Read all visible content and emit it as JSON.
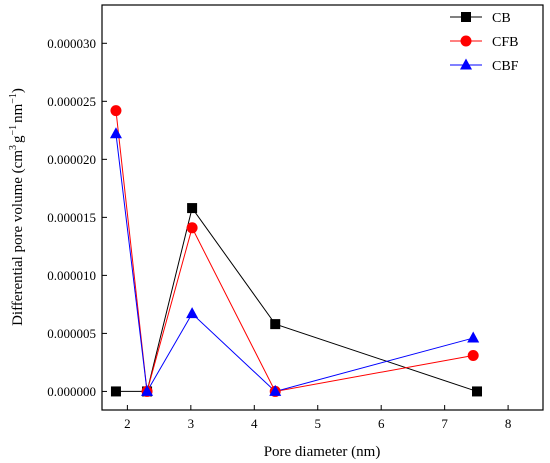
{
  "chart_data": {
    "type": "line",
    "xlabel": "Pore diameter (nm)",
    "ylabel": {
      "prefix": "Differential pore volume (cm",
      "sup1": "3",
      "mid": "g",
      "sup2": "−1",
      "mid2": "nm",
      "sup3": "−1",
      "suffix": ")"
    },
    "xlim": [
      1.6,
      8.55
    ],
    "ylim": [
      -1.6e-06,
      3.33e-05
    ],
    "xticks": [
      2,
      3,
      4,
      5,
      6,
      7,
      8
    ],
    "yticks": [
      0.0,
      5e-06,
      1e-05,
      1.5e-05,
      2e-05,
      2.5e-05,
      3e-05
    ],
    "ytick_labels": [
      "0.000000",
      "0.000005",
      "0.000010",
      "0.000015",
      "0.000020",
      "0.000025",
      "0.000030"
    ],
    "legend_position": "top-right",
    "grid": false,
    "series": [
      {
        "name": "CB",
        "color": "#000000",
        "marker": "square",
        "x": [
          1.82,
          2.31,
          3.02,
          4.33,
          7.51
        ],
        "y": [
          0.0,
          0.0,
          1.58e-05,
          5.8e-06,
          0.0
        ]
      },
      {
        "name": "CFB",
        "color": "#ff0000",
        "marker": "circle",
        "x": [
          1.82,
          2.31,
          3.02,
          4.33,
          7.45
        ],
        "y": [
          2.42e-05,
          0.0,
          1.41e-05,
          0.0,
          3.1e-06
        ]
      },
      {
        "name": "CBF",
        "color": "#0000ff",
        "marker": "triangle",
        "x": [
          1.82,
          2.31,
          3.02,
          4.33,
          7.45
        ],
        "y": [
          2.22e-05,
          0.0,
          6.7e-06,
          0.0,
          4.6e-06
        ]
      }
    ]
  }
}
